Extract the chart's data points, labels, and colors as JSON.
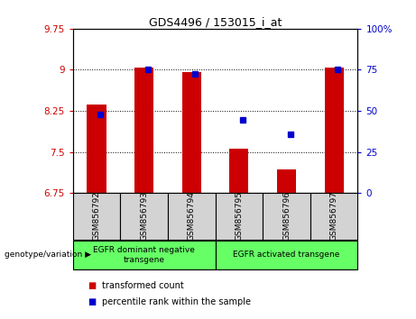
{
  "title": "GDS4496 / 153015_i_at",
  "samples": [
    "GSM856792",
    "GSM856793",
    "GSM856794",
    "GSM856795",
    "GSM856796",
    "GSM856797"
  ],
  "red_values": [
    8.37,
    9.04,
    8.96,
    7.56,
    7.18,
    9.04
  ],
  "blue_values": [
    8.19,
    9.0,
    8.92,
    8.08,
    7.82,
    9.0
  ],
  "ylim": [
    6.75,
    9.75
  ],
  "yticks": [
    6.75,
    7.5,
    8.25,
    9.0,
    9.75
  ],
  "ytick_labels": [
    "6.75",
    "7.5",
    "8.25",
    "9",
    "9.75"
  ],
  "right_yticks": [
    0,
    25,
    50,
    75,
    100
  ],
  "right_ytick_labels": [
    "0",
    "25",
    "50",
    "75",
    "100%"
  ],
  "bar_color": "#CC0000",
  "dot_color": "#0000CC",
  "bar_width": 0.4,
  "plot_bg_color": "#ffffff",
  "tick_color_left": "#CC0000",
  "tick_color_right": "#0000CC",
  "legend_items": [
    {
      "label": "transformed count",
      "color": "#CC0000"
    },
    {
      "label": "percentile rank within the sample",
      "color": "#0000CC"
    }
  ],
  "genotype_label": "genotype/variation",
  "bar_base": 6.75,
  "group1_label": "EGFR dominant negative\ntransgene",
  "group2_label": "EGFR activated transgene",
  "group_color": "#66FF66"
}
